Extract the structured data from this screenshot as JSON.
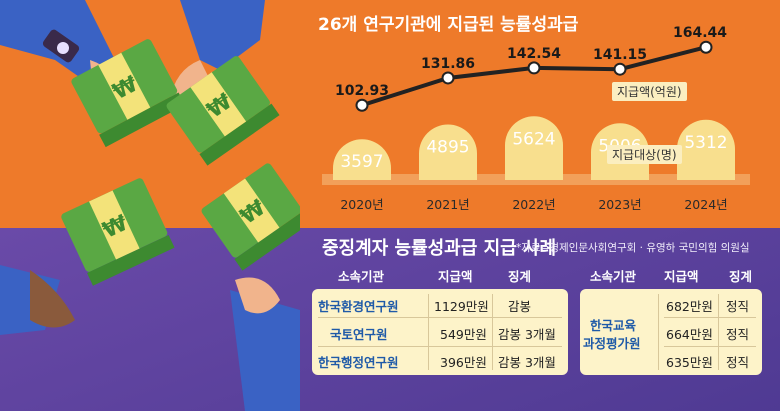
{
  "title": "26개 연구기관에 지급된 능률성과급",
  "chart_data": {
    "type": "line+bar",
    "categories": [
      "2020년",
      "2021년",
      "2022년",
      "2023년",
      "2024년"
    ],
    "series": [
      {
        "name": "지급액(억원)",
        "type": "line",
        "values": [
          102.93,
          131.86,
          142.54,
          141.15,
          164.44
        ],
        "labels": [
          "102.93",
          "131.86",
          "142.54",
          "141.15",
          "164.44"
        ]
      },
      {
        "name": "지급대상(명)",
        "type": "bar",
        "values": [
          3597,
          4895,
          5624,
          5006,
          5312
        ],
        "labels": [
          "3597",
          "4895",
          "5624",
          "5006",
          "5312"
        ]
      }
    ]
  },
  "table": {
    "title": "중징계자 능률성과급 지급 사례",
    "source": "*자료=경제인문사회연구회 · 유영하 국민의힘 의원실",
    "headers": {
      "org": "소속기관",
      "amount": "지급액",
      "discipline": "징계"
    },
    "left_rows": [
      {
        "org": "한국환경연구원",
        "amount": "1129만원",
        "discipline": "감봉"
      },
      {
        "org": "국토연구원",
        "amount": "549만원",
        "discipline": "감봉 3개월"
      },
      {
        "org": "한국행정연구원",
        "amount": "396만원",
        "discipline": "감봉 3개월"
      }
    ],
    "right_org_line1": "한국교육",
    "right_org_line2": "과정평가원",
    "right_rows": [
      {
        "amount": "682만원",
        "discipline": "정직"
      },
      {
        "amount": "664만원",
        "discipline": "정직"
      },
      {
        "amount": "635만원",
        "discipline": "정직"
      }
    ]
  },
  "colors": {
    "orange": "#ee7a2a",
    "purple": "#5a3f98",
    "bar": "#f8df8e",
    "line": "#222222",
    "money": "#5aa844",
    "band": "#f3e37a",
    "org": "#1f5aa8"
  },
  "icons": [
    "won-sign-icon",
    "wrist-watch-icon"
  ]
}
